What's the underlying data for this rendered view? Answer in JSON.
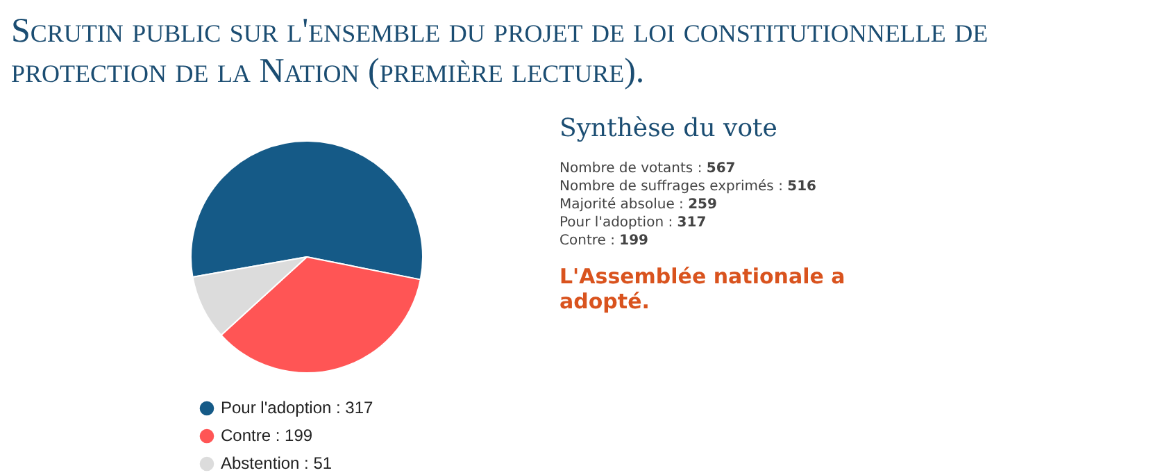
{
  "chart_data": {
    "type": "pie",
    "title": "Scrutin public sur l'ensemble du projet de loi constitutionnelle de protection de la Nation (première lecture).",
    "subtitle": "Synthèse du vote",
    "categories": [
      "Pour l'adoption : 317",
      "Contre : 199",
      "Abstention : 51"
    ],
    "values": [
      317,
      199,
      51
    ],
    "colors": [
      "#155a87",
      "#ff5555",
      "#dcdcdc"
    ],
    "legend": "bottom",
    "annotations": [
      "Nombre de votants : 567",
      "Nombre de suffrages exprimés : 516",
      "Majorité absolue : 259",
      "Pour l'adoption : 317",
      "Contre : 199",
      "L'Assemblée nationale a adopté."
    ]
  }
}
